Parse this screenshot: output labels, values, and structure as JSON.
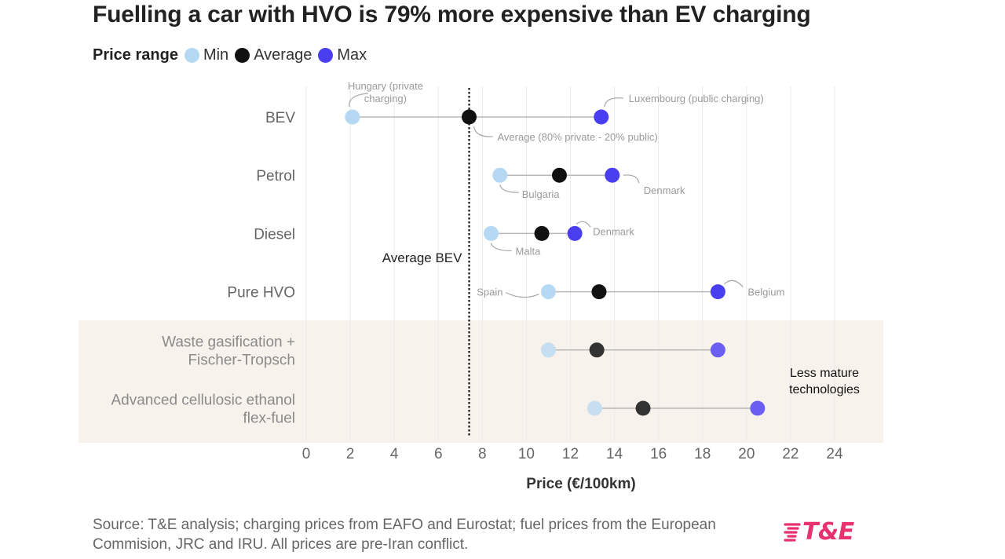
{
  "title": "Fuelling a car with HVO is 79% more expensive than EV charging",
  "legend": {
    "title": "Price range",
    "items": [
      {
        "label": "Min",
        "color": "#b5d9f2"
      },
      {
        "label": "Average",
        "color": "#111111"
      },
      {
        "label": "Max",
        "color": "#4a3ff0"
      }
    ]
  },
  "chart_data": {
    "type": "dot-range",
    "xlabel": "Price (€/100km)",
    "xlim": [
      0,
      24
    ],
    "xticks": [
      0,
      2,
      4,
      6,
      8,
      10,
      12,
      14,
      16,
      18,
      20,
      22,
      24
    ],
    "grid": true,
    "reference_line": {
      "value": 7.4,
      "label": "Average BEV"
    },
    "highlight_band": {
      "label": "Less mature technologies",
      "rows": [
        4,
        5
      ],
      "color": "#f8f2ec"
    },
    "rows": [
      {
        "label": "BEV",
        "min": 2.1,
        "avg": 7.4,
        "max": 13.4,
        "faded": false
      },
      {
        "label": "Petrol",
        "min": 8.8,
        "avg": 11.5,
        "max": 13.9,
        "faded": false
      },
      {
        "label": "Diesel",
        "min": 8.4,
        "avg": 10.7,
        "max": 12.2,
        "faded": false
      },
      {
        "label": "Pure HVO",
        "min": 11.0,
        "avg": 13.3,
        "max": 18.7,
        "faded": false
      },
      {
        "label": [
          "Waste gasification +",
          "Fischer-Tropsch"
        ],
        "min": 11.0,
        "avg": 13.2,
        "max": 18.7,
        "faded": true
      },
      {
        "label": [
          "Advanced cellulosic ethanol",
          "flex-fuel"
        ],
        "min": 13.1,
        "avg": 15.3,
        "max": 20.5,
        "faded": true
      }
    ],
    "annotations": [
      {
        "text": [
          "Hungary (private",
          "charging)"
        ],
        "row": 0,
        "point": "min"
      },
      {
        "text": [
          "Luxembourg (public charging)"
        ],
        "row": 0,
        "point": "max"
      },
      {
        "text": [
          "Average (80% private - 20% public)"
        ],
        "row": 0,
        "point": "avg"
      },
      {
        "text": [
          "Bulgaria"
        ],
        "row": 1,
        "point": "min"
      },
      {
        "text": [
          "Denmark"
        ],
        "row": 1,
        "point": "max"
      },
      {
        "text": [
          "Malta"
        ],
        "row": 2,
        "point": "min"
      },
      {
        "text": [
          "Denmark"
        ],
        "row": 2,
        "point": "max"
      },
      {
        "text": [
          "Spain"
        ],
        "row": 3,
        "point": "min"
      },
      {
        "text": [
          "Belgium"
        ],
        "row": 3,
        "point": "max"
      }
    ]
  },
  "footer": {
    "source": "Source: T&E analysis; charging prices from EAFO and Eurostat; fuel prices from the European Commision, JRC and IRU. All prices are pre-Iran conflict."
  },
  "logo": {
    "text": "T&E",
    "color": "#e8326e"
  }
}
